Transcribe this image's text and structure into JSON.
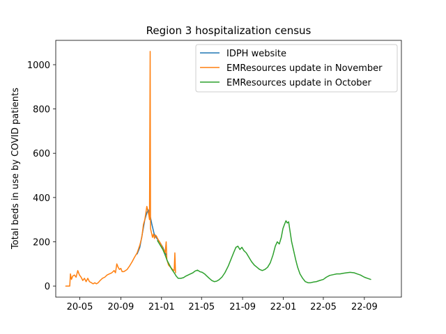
{
  "chart_data": {
    "type": "line",
    "title": "Region 3 hospitalization census",
    "xlabel": "",
    "ylabel": "Total beds in use by COVID patients",
    "x_tick_labels": [
      "20-05",
      "20-09",
      "21-01",
      "21-05",
      "21-09",
      "22-01",
      "22-05",
      "22-09"
    ],
    "x_ticks": [
      "2020-05-01",
      "2020-09-01",
      "2021-01-01",
      "2021-05-01",
      "2021-09-01",
      "2022-01-01",
      "2022-05-01",
      "2022-09-01"
    ],
    "xlim": [
      "2020-02-19",
      "2022-12-21"
    ],
    "y_ticks": [
      0,
      200,
      400,
      600,
      800,
      1000
    ],
    "ylim": [
      -50,
      1110
    ],
    "grid": false,
    "legend_position": "upper right",
    "series": [
      {
        "name": "IDPH website",
        "color": "#1f77b4",
        "points": [
          [
            "2020-10-20",
            145
          ],
          [
            "2020-10-28",
            175
          ],
          [
            "2020-11-05",
            240
          ],
          [
            "2020-11-12",
            300
          ],
          [
            "2020-11-18",
            330
          ],
          [
            "2020-11-22",
            345
          ],
          [
            "2020-11-27",
            325
          ],
          [
            "2020-12-03",
            280
          ],
          [
            "2020-12-10",
            235
          ],
          [
            "2020-12-18",
            215
          ],
          [
            "2020-12-26",
            200
          ],
          [
            "2021-01-05",
            175
          ],
          [
            "2021-01-15",
            140
          ]
        ]
      },
      {
        "name": "EMResources update in November",
        "color": "#ff7f0e",
        "points": [
          [
            "2020-03-20",
            0
          ],
          [
            "2020-04-01",
            0
          ],
          [
            "2020-04-03",
            55
          ],
          [
            "2020-04-06",
            30
          ],
          [
            "2020-04-10",
            45
          ],
          [
            "2020-04-15",
            50
          ],
          [
            "2020-04-20",
            40
          ],
          [
            "2020-04-25",
            70
          ],
          [
            "2020-04-30",
            50
          ],
          [
            "2020-05-05",
            40
          ],
          [
            "2020-05-10",
            25
          ],
          [
            "2020-05-15",
            35
          ],
          [
            "2020-05-20",
            20
          ],
          [
            "2020-05-25",
            35
          ],
          [
            "2020-05-30",
            20
          ],
          [
            "2020-06-05",
            15
          ],
          [
            "2020-06-10",
            10
          ],
          [
            "2020-06-15",
            15
          ],
          [
            "2020-06-20",
            10
          ],
          [
            "2020-06-25",
            15
          ],
          [
            "2020-07-01",
            25
          ],
          [
            "2020-07-08",
            35
          ],
          [
            "2020-07-15",
            40
          ],
          [
            "2020-07-22",
            50
          ],
          [
            "2020-07-29",
            55
          ],
          [
            "2020-08-05",
            60
          ],
          [
            "2020-08-12",
            70
          ],
          [
            "2020-08-16",
            60
          ],
          [
            "2020-08-20",
            100
          ],
          [
            "2020-08-24",
            85
          ],
          [
            "2020-08-28",
            75
          ],
          [
            "2020-09-01",
            80
          ],
          [
            "2020-09-05",
            65
          ],
          [
            "2020-09-10",
            65
          ],
          [
            "2020-09-15",
            70
          ],
          [
            "2020-09-20",
            75
          ],
          [
            "2020-09-27",
            90
          ],
          [
            "2020-10-05",
            110
          ],
          [
            "2020-10-12",
            130
          ],
          [
            "2020-10-20",
            150
          ],
          [
            "2020-10-28",
            185
          ],
          [
            "2020-11-03",
            220
          ],
          [
            "2020-11-08",
            280
          ],
          [
            "2020-11-12",
            300
          ],
          [
            "2020-11-15",
            330
          ],
          [
            "2020-11-18",
            360
          ],
          [
            "2020-11-21",
            340
          ],
          [
            "2020-11-24",
            320
          ],
          [
            "2020-11-26",
            300
          ],
          [
            "2020-11-28",
            1060
          ],
          [
            "2020-11-29",
            260
          ],
          [
            "2020-12-02",
            240
          ],
          [
            "2020-12-05",
            220
          ],
          [
            "2020-12-08",
            235
          ],
          [
            "2020-12-11",
            215
          ],
          [
            "2020-12-14",
            230
          ],
          [
            "2020-12-17",
            225
          ],
          [
            "2020-12-20",
            215
          ],
          [
            "2020-12-24",
            205
          ],
          [
            "2020-12-30",
            190
          ],
          [
            "2021-01-05",
            170
          ],
          [
            "2021-01-12",
            150
          ],
          [
            "2021-01-15",
            200
          ],
          [
            "2021-01-17",
            120
          ],
          [
            "2021-01-22",
            95
          ],
          [
            "2021-01-28",
            85
          ],
          [
            "2021-02-03",
            75
          ],
          [
            "2021-02-08",
            70
          ],
          [
            "2021-02-10",
            150
          ],
          [
            "2021-02-12",
            60
          ]
        ]
      },
      {
        "name": "EMResources update in October",
        "color": "#2ca02c",
        "points": [
          [
            "2020-12-20",
            205
          ],
          [
            "2020-12-28",
            185
          ],
          [
            "2021-01-05",
            165
          ],
          [
            "2021-01-12",
            140
          ],
          [
            "2021-01-18",
            115
          ],
          [
            "2021-01-25",
            95
          ],
          [
            "2021-02-01",
            75
          ],
          [
            "2021-02-08",
            60
          ],
          [
            "2021-02-14",
            45
          ],
          [
            "2021-02-20",
            35
          ],
          [
            "2021-02-28",
            35
          ],
          [
            "2021-03-08",
            38
          ],
          [
            "2021-03-15",
            45
          ],
          [
            "2021-03-22",
            50
          ],
          [
            "2021-03-29",
            55
          ],
          [
            "2021-04-05",
            60
          ],
          [
            "2021-04-12",
            68
          ],
          [
            "2021-04-19",
            72
          ],
          [
            "2021-04-26",
            65
          ],
          [
            "2021-05-03",
            62
          ],
          [
            "2021-05-10",
            55
          ],
          [
            "2021-05-17",
            45
          ],
          [
            "2021-05-24",
            35
          ],
          [
            "2021-06-01",
            25
          ],
          [
            "2021-06-08",
            20
          ],
          [
            "2021-06-15",
            22
          ],
          [
            "2021-06-22",
            28
          ],
          [
            "2021-07-01",
            40
          ],
          [
            "2021-07-10",
            60
          ],
          [
            "2021-07-20",
            90
          ],
          [
            "2021-07-28",
            120
          ],
          [
            "2021-08-05",
            150
          ],
          [
            "2021-08-12",
            175
          ],
          [
            "2021-08-18",
            180
          ],
          [
            "2021-08-24",
            165
          ],
          [
            "2021-08-30",
            175
          ],
          [
            "2021-09-05",
            160
          ],
          [
            "2021-09-12",
            150
          ],
          [
            "2021-09-20",
            130
          ],
          [
            "2021-09-28",
            110
          ],
          [
            "2021-10-06",
            95
          ],
          [
            "2021-10-14",
            85
          ],
          [
            "2021-10-22",
            75
          ],
          [
            "2021-10-30",
            70
          ],
          [
            "2021-11-07",
            75
          ],
          [
            "2021-11-15",
            85
          ],
          [
            "2021-11-23",
            105
          ],
          [
            "2021-12-01",
            140
          ],
          [
            "2021-12-08",
            180
          ],
          [
            "2021-12-14",
            200
          ],
          [
            "2021-12-20",
            190
          ],
          [
            "2021-12-26",
            220
          ],
          [
            "2021-12-31",
            260
          ],
          [
            "2022-01-05",
            280
          ],
          [
            "2022-01-09",
            295
          ],
          [
            "2022-01-13",
            285
          ],
          [
            "2022-01-17",
            290
          ],
          [
            "2022-01-21",
            250
          ],
          [
            "2022-01-26",
            200
          ],
          [
            "2022-02-01",
            160
          ],
          [
            "2022-02-07",
            120
          ],
          [
            "2022-02-13",
            85
          ],
          [
            "2022-02-20",
            55
          ],
          [
            "2022-02-28",
            35
          ],
          [
            "2022-03-08",
            20
          ],
          [
            "2022-03-16",
            15
          ],
          [
            "2022-03-24",
            15
          ],
          [
            "2022-04-01",
            18
          ],
          [
            "2022-04-10",
            20
          ],
          [
            "2022-04-20",
            25
          ],
          [
            "2022-05-01",
            30
          ],
          [
            "2022-05-10",
            40
          ],
          [
            "2022-05-20",
            48
          ],
          [
            "2022-06-01",
            52
          ],
          [
            "2022-06-10",
            55
          ],
          [
            "2022-06-20",
            55
          ],
          [
            "2022-07-01",
            58
          ],
          [
            "2022-07-10",
            60
          ],
          [
            "2022-07-20",
            62
          ],
          [
            "2022-08-01",
            60
          ],
          [
            "2022-08-10",
            55
          ],
          [
            "2022-08-20",
            50
          ],
          [
            "2022-09-01",
            40
          ],
          [
            "2022-09-10",
            35
          ],
          [
            "2022-09-20",
            30
          ]
        ]
      }
    ]
  }
}
